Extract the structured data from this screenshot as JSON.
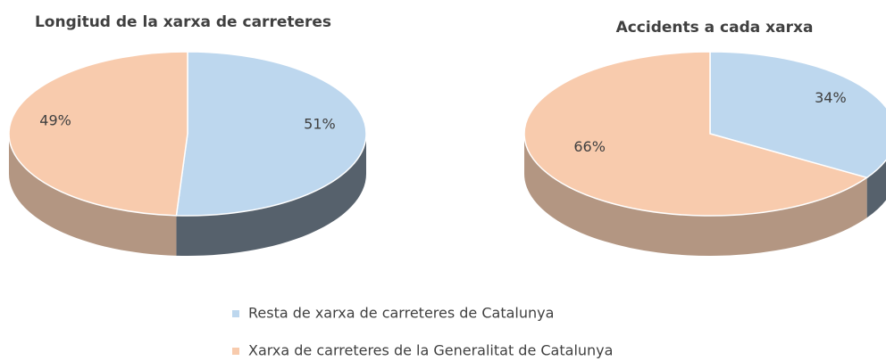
{
  "chart_data": [
    {
      "type": "pie3d",
      "title": "Longitud de la xarxa de carreteres",
      "categories": [
        "Resta de xarxa de carreteres de Catalunya",
        "Xarxa de carreteres de la Generalitat de Catalunya"
      ],
      "values": [
        51,
        49
      ],
      "value_labels": [
        "51%",
        "49%"
      ],
      "colors": [
        "#bdd7ee",
        "#f8cbad"
      ],
      "side_colors": [
        "#56616c",
        "#b39682"
      ]
    },
    {
      "type": "pie3d",
      "title": "Accidents a cada xarxa",
      "categories": [
        "Resta de xarxa de carreteres de Catalunya",
        "Xarxa de carreteres de la Generalitat de Catalunya"
      ],
      "values": [
        34,
        66
      ],
      "value_labels": [
        "34%",
        "66%"
      ],
      "colors": [
        "#bdd7ee",
        "#f8cbad"
      ],
      "side_colors": [
        "#56616c",
        "#b39682"
      ]
    }
  ]
}
